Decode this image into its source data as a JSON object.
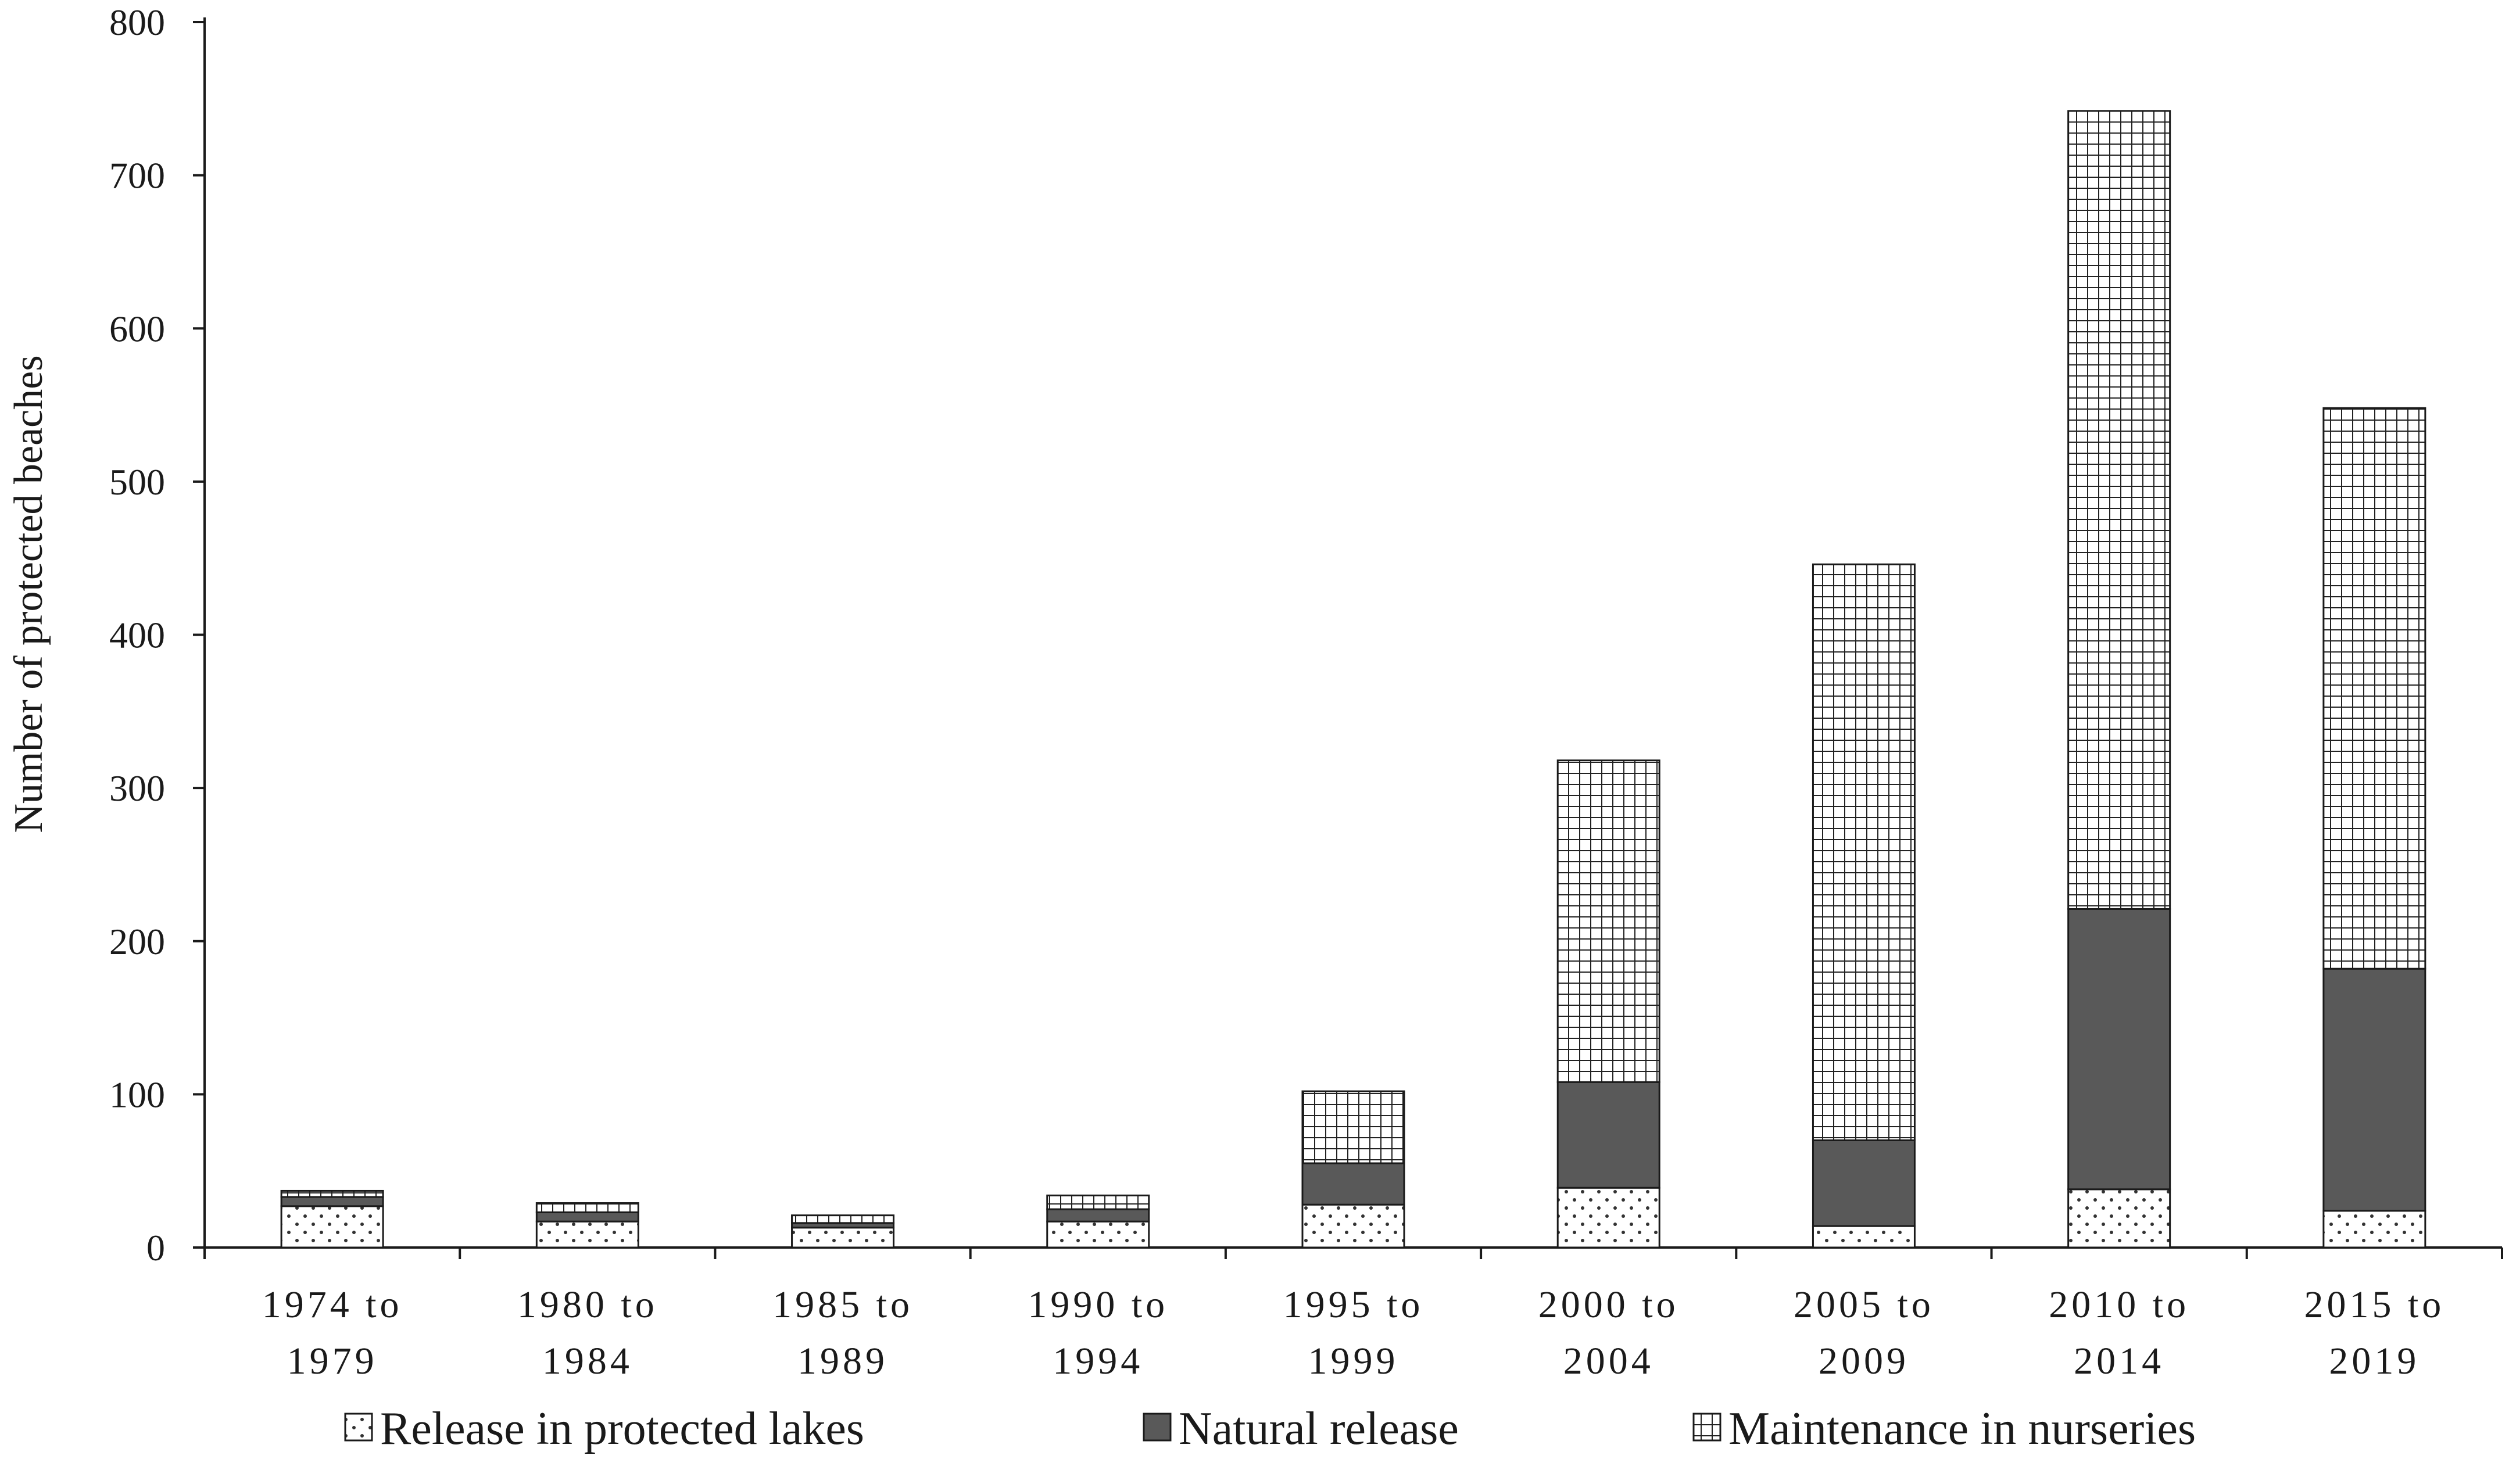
{
  "chart_data": {
    "type": "bar",
    "stacked": true,
    "title": "",
    "xlabel": "",
    "ylabel": "Number of protected beaches",
    "ylim": [
      0,
      800
    ],
    "yticks": [
      0,
      100,
      200,
      300,
      400,
      500,
      600,
      700,
      800
    ],
    "grid": false,
    "legend_position": "bottom",
    "categories": [
      [
        "1974 to",
        "1979"
      ],
      [
        "1980 to",
        "1984"
      ],
      [
        "1985 to",
        "1989"
      ],
      [
        "1990 to",
        "1994"
      ],
      [
        "1995 to",
        "1999"
      ],
      [
        "2000 to",
        "2004"
      ],
      [
        "2005 to",
        "2009"
      ],
      [
        "2010 to",
        "2014"
      ],
      [
        "2015 to",
        "2019"
      ]
    ],
    "series": [
      {
        "name": "Release in protected lakes",
        "pattern": "dots",
        "values": [
          27,
          17,
          13,
          17,
          28,
          39,
          14,
          38,
          24
        ]
      },
      {
        "name": "Natural release",
        "pattern": "solid",
        "color": "#595959",
        "values": [
          6,
          6,
          3,
          8,
          27,
          69,
          56,
          183,
          158
        ]
      },
      {
        "name": "Maintenance in nurseries",
        "pattern": "grid",
        "values": [
          4,
          6,
          5,
          9,
          47,
          210,
          376,
          521,
          366
        ]
      }
    ]
  }
}
